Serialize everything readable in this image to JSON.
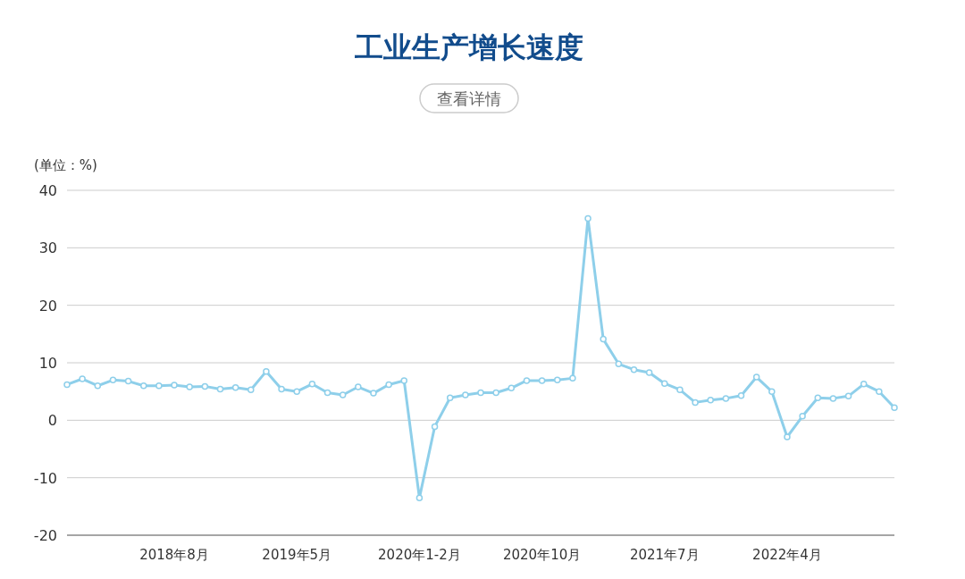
{
  "chart_data": {
    "type": "line",
    "title": "工业生产增长速度",
    "ylabel": "(单位：%)",
    "annotations": [
      "查看详情"
    ],
    "categories": [
      null,
      null,
      null,
      null,
      null,
      null,
      null,
      "2018年8月",
      null,
      null,
      null,
      null,
      null,
      null,
      null,
      "2019年5月",
      null,
      null,
      null,
      null,
      null,
      null,
      null,
      "2020年1-2月",
      null,
      null,
      null,
      null,
      null,
      null,
      null,
      "2020年10月",
      null,
      null,
      null,
      null,
      null,
      null,
      null,
      "2021年7月",
      null,
      null,
      null,
      null,
      null,
      null,
      null,
      "2022年4月",
      null,
      null,
      null,
      null,
      null,
      null,
      null
    ],
    "series": [
      {
        "color": "#8ecfea",
        "values": [
          6.2,
          7.2,
          6.0,
          7.0,
          6.8,
          6.0,
          6.0,
          6.1,
          5.8,
          5.9,
          5.4,
          5.7,
          5.3,
          8.5,
          5.4,
          5.0,
          6.3,
          4.8,
          4.4,
          5.8,
          4.7,
          6.2,
          6.9,
          -13.5,
          -1.1,
          3.9,
          4.4,
          4.8,
          4.8,
          5.6,
          6.9,
          6.9,
          7.0,
          7.3,
          35.1,
          14.1,
          9.8,
          8.8,
          8.3,
          6.4,
          5.3,
          3.1,
          3.5,
          3.8,
          4.3,
          7.5,
          5.0,
          -2.9,
          0.7,
          3.9,
          3.8,
          4.2,
          6.3,
          5.0,
          2.2
        ]
      }
    ],
    "ylim": [
      -20,
      40
    ],
    "yticks": [
      -20,
      -10,
      0,
      10,
      20,
      30,
      40
    ],
    "grid": "y",
    "marker": "circle",
    "line_style": "solid"
  }
}
